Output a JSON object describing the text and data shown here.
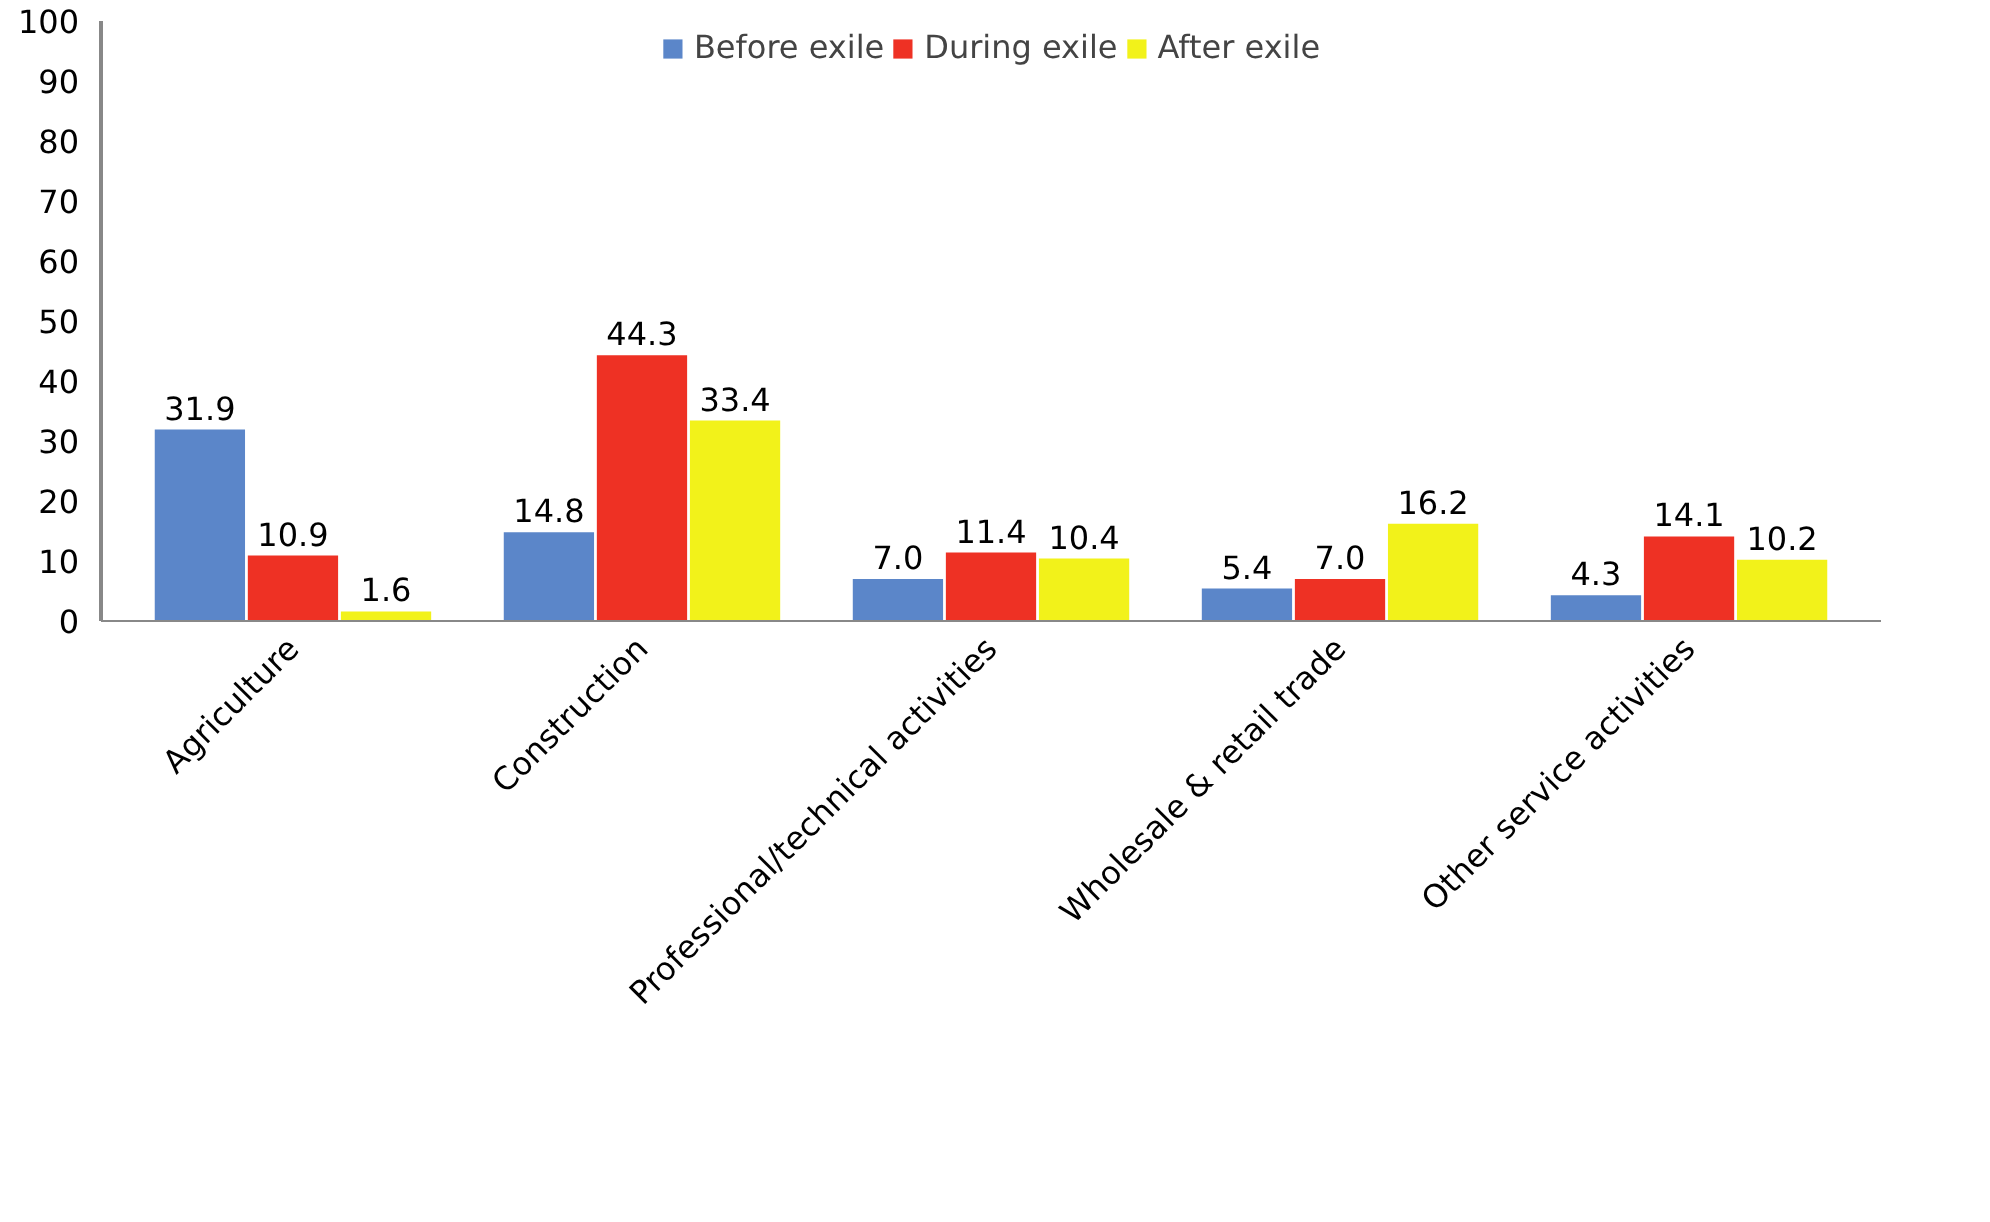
{
  "chart_data": {
    "type": "bar",
    "categories": [
      "Agriculture",
      "Construction",
      "Professional/technical activities",
      "Wholesale & retail trade",
      "Other service activities"
    ],
    "series": [
      {
        "name": "Before exile",
        "color": "#5b86c9",
        "values": [
          31.9,
          14.8,
          7.0,
          5.4,
          4.3
        ]
      },
      {
        "name": "During exile",
        "color": "#ee3124",
        "values": [
          10.9,
          44.3,
          11.4,
          7.0,
          14.1
        ]
      },
      {
        "name": "After exile",
        "color": "#f2f21a",
        "values": [
          1.6,
          33.4,
          10.4,
          16.2,
          10.2
        ]
      }
    ],
    "ylim": [
      0,
      100
    ],
    "yticks": [
      0,
      10,
      20,
      30,
      40,
      50,
      60,
      70,
      80,
      90,
      100
    ],
    "grid": false,
    "legend": "top",
    "value_labels": [
      [
        "31.9",
        "14.8",
        "7.0",
        "5.4",
        "4.3"
      ],
      [
        "10.9",
        "44.3",
        "11.4",
        "7.0",
        "14.1"
      ],
      [
        "1.6",
        "33.4",
        "10.4",
        "16.2",
        "10.2"
      ]
    ]
  }
}
